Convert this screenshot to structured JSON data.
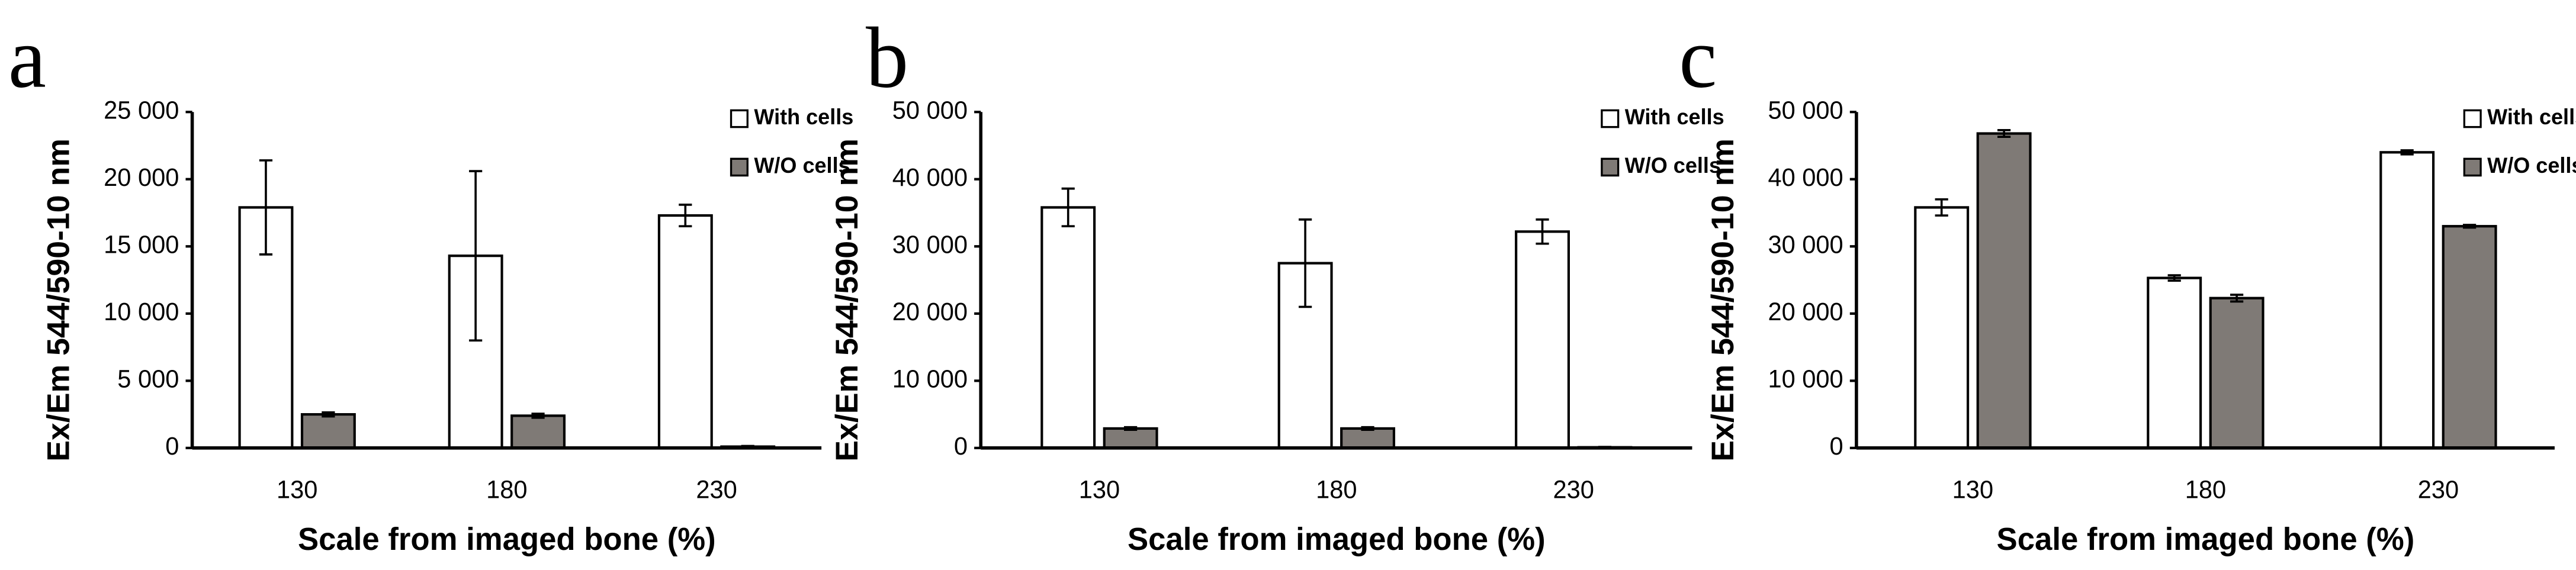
{
  "chart_data": [
    {
      "type": "bar",
      "panel_label": "a",
      "y_label": "Ex/Em 544/590-10 nm",
      "x_label": "Scale from imaged bone (%)",
      "categories": [
        "130",
        "180",
        "230"
      ],
      "series": [
        {
          "name": "With cells",
          "color": "#ffffff",
          "values": [
            17900,
            14300,
            17300
          ],
          "errors": [
            3500,
            6300,
            800
          ]
        },
        {
          "name": "W/O cells",
          "color": "#7f7a76",
          "values": [
            2500,
            2400,
            100
          ],
          "errors": [
            150,
            150,
            50
          ]
        }
      ],
      "ylim": [
        0,
        25000
      ],
      "yticks": [
        0,
        {
          "value": 5000,
          "label": "5 000"
        },
        {
          "value": 10000,
          "label": "10 000"
        },
        {
          "value": 15000,
          "label": "15 000"
        },
        {
          "value": 20000,
          "label": "20 000"
        },
        {
          "value": 25000,
          "label": "25 000"
        }
      ]
    },
    {
      "type": "bar",
      "panel_label": "b",
      "y_label": "Ex/Em 544/590-10 nm",
      "x_label": "Scale from imaged bone (%)",
      "categories": [
        "130",
        "180",
        "230"
      ],
      "series": [
        {
          "name": "With cells",
          "color": "#ffffff",
          "values": [
            35800,
            27500,
            32200
          ],
          "errors": [
            2800,
            6500,
            1800
          ]
        },
        {
          "name": "W/O cells",
          "color": "#7f7a76",
          "values": [
            2900,
            2900,
            100
          ],
          "errors": [
            200,
            200,
            50
          ]
        }
      ],
      "ylim": [
        0,
        50000
      ],
      "yticks": [
        0,
        {
          "value": 10000,
          "label": "10 000"
        },
        {
          "value": 20000,
          "label": "20 000"
        },
        {
          "value": 30000,
          "label": "30 000"
        },
        {
          "value": 40000,
          "label": "40 000"
        },
        {
          "value": 50000,
          "label": "50 000"
        }
      ]
    },
    {
      "type": "bar",
      "panel_label": "c",
      "y_label": "Ex/Em 544/590-10 nm",
      "x_label": "Scale from imaged bone (%)",
      "categories": [
        "130",
        "180",
        "230"
      ],
      "series": [
        {
          "name": "With cells",
          "color": "#ffffff",
          "values": [
            35800,
            25300,
            44000
          ],
          "errors": [
            1200,
            400,
            300
          ]
        },
        {
          "name": "W/O cells",
          "color": "#7f7a76",
          "values": [
            46800,
            22300,
            33000
          ],
          "errors": [
            500,
            500,
            200
          ]
        }
      ],
      "ylim": [
        0,
        50000
      ],
      "yticks": [
        0,
        {
          "value": 10000,
          "label": "10 000"
        },
        {
          "value": 20000,
          "label": "20 000"
        },
        {
          "value": 30000,
          "label": "30 000"
        },
        {
          "value": 40000,
          "label": "40 000"
        },
        {
          "value": 50000,
          "label": "50 000"
        }
      ]
    }
  ]
}
